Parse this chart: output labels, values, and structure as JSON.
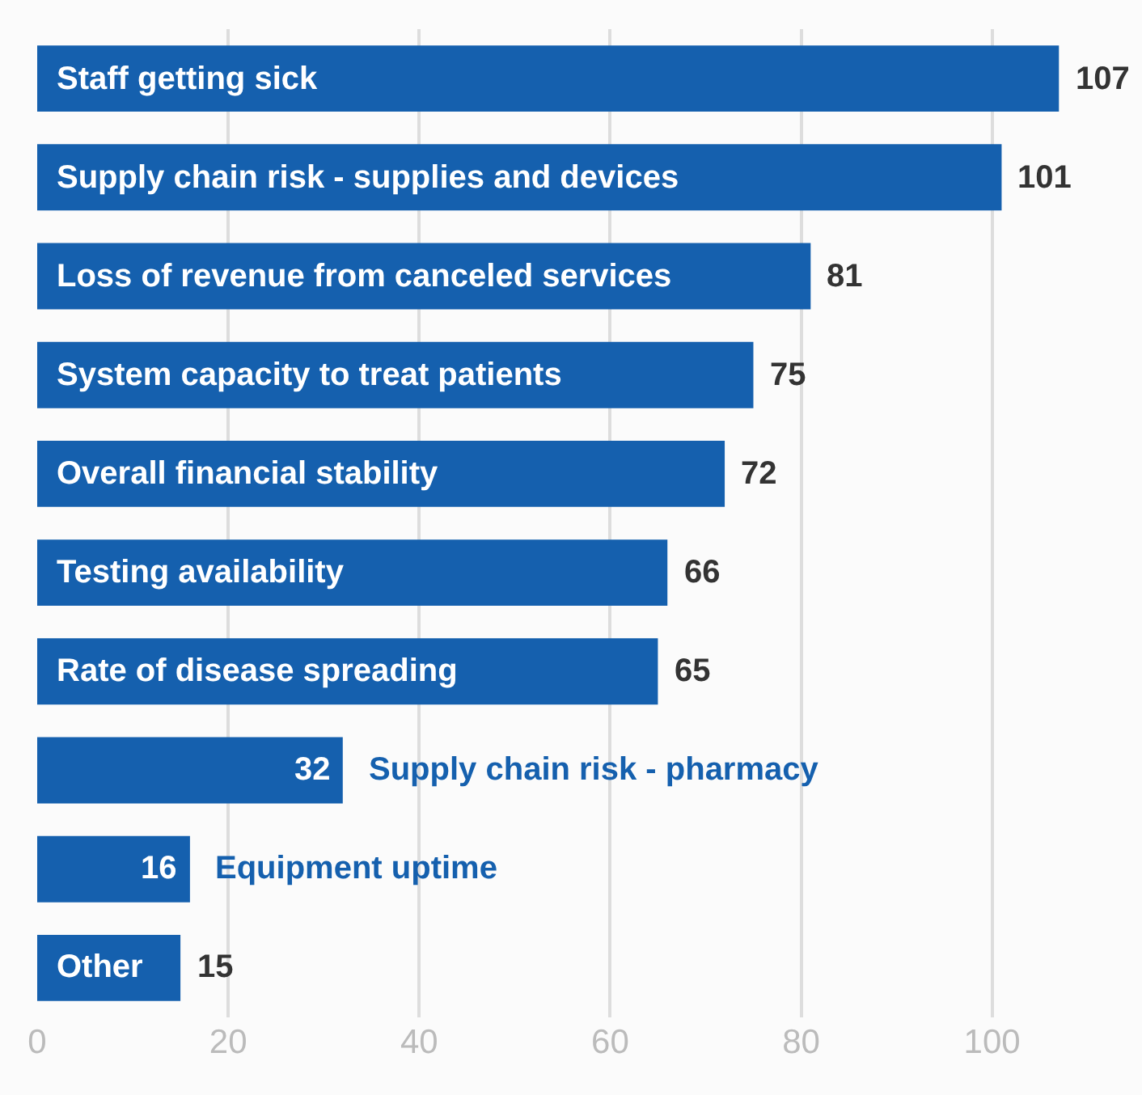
{
  "chart_data": {
    "type": "bar",
    "orientation": "horizontal",
    "categories": [
      "Staff getting sick",
      "Supply chain risk - supplies and devices",
      "Loss of revenue from canceled services",
      "System capacity to treat patients",
      "Overall financial stability",
      "Testing availability",
      "Rate of disease spreading",
      "Supply chain risk - pharmacy",
      "Equipment uptime",
      "Other"
    ],
    "values": [
      107,
      101,
      81,
      75,
      72,
      66,
      65,
      32,
      16,
      15
    ],
    "color": "#1560ae",
    "xlim": [
      0,
      115.7
    ],
    "xticks": [
      0,
      20,
      40,
      60,
      80,
      100
    ],
    "grid": "x",
    "data_labels": true
  }
}
